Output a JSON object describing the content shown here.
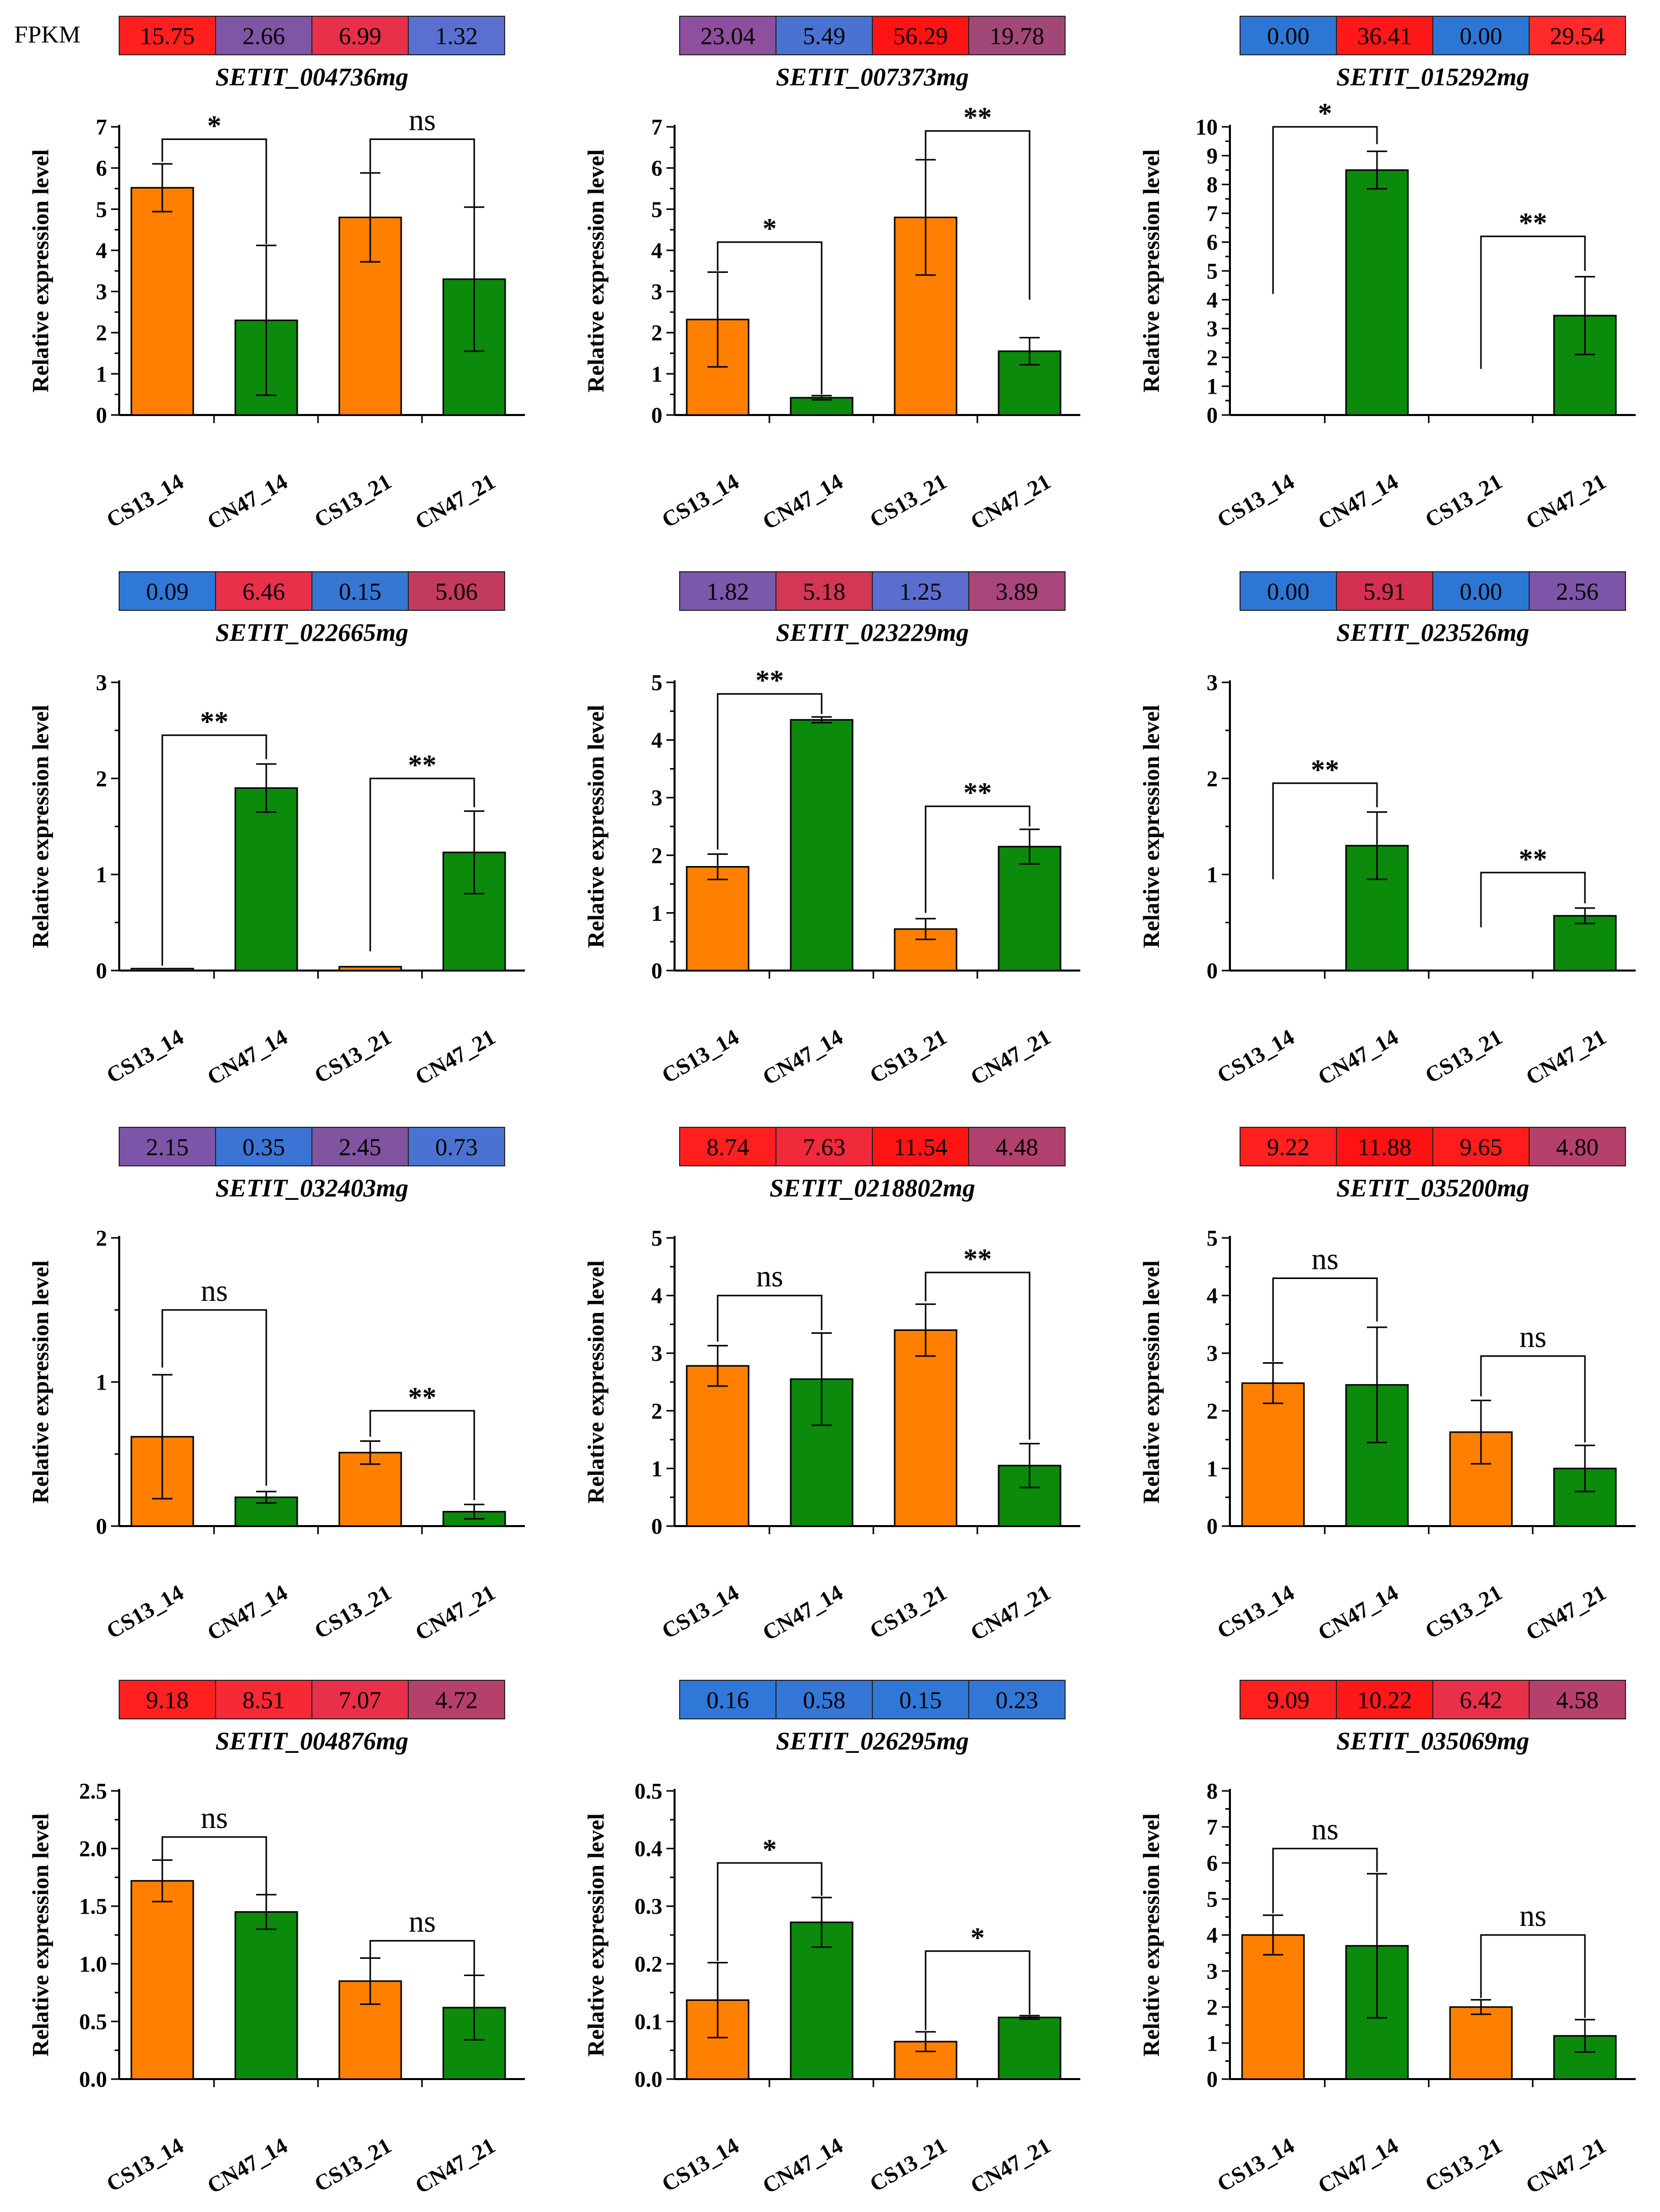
{
  "figure": {
    "fpkm_label": "FPKM",
    "colors": {
      "cs13": "#ff8000",
      "cn47": "#0b8a0b"
    }
  },
  "chart_data": [
    {
      "type": "bar",
      "gene": "SETIT_004736mg",
      "fpkm": [
        "15.75",
        "2.66",
        "6.99",
        "1.32"
      ],
      "fpkm_colors": [
        "#ff1f1f",
        "#7f55a5",
        "#e8304a",
        "#5a6fd0"
      ],
      "categories": [
        "CS13_14",
        "CN47_14",
        "CS13_21",
        "CN47_21"
      ],
      "values": [
        5.52,
        2.3,
        4.8,
        3.3
      ],
      "errors": [
        0.58,
        1.82,
        1.08,
        1.75
      ],
      "ylabel": "Relative expression level",
      "ylim": [
        0,
        7
      ],
      "yticks": [
        0,
        1,
        2,
        3,
        4,
        5,
        6,
        7
      ],
      "tick_labels": [
        "0",
        "1",
        "2",
        "3",
        "4",
        "5",
        "6",
        "7"
      ],
      "sig": [
        {
          "label": "*",
          "y_top": 6.7,
          "left_end": 6.15,
          "right_end": 4.15
        },
        {
          "label": "ns",
          "y_top": 6.7,
          "left_end": 5.9,
          "right_end": 5.05
        }
      ]
    },
    {
      "type": "bar",
      "gene": "SETIT_007373mg",
      "fpkm": [
        "23.04",
        "5.49",
        "56.29",
        "19.78"
      ],
      "fpkm_colors": [
        "#8e4f9e",
        "#4a73d1",
        "#ff1414",
        "#a24878"
      ],
      "categories": [
        "CS13_14",
        "CN47_14",
        "CS13_21",
        "CN47_21"
      ],
      "values": [
        2.32,
        0.42,
        4.8,
        1.55
      ],
      "errors": [
        1.15,
        0.05,
        1.4,
        0.33
      ],
      "ylabel": "Relative expression level",
      "ylim": [
        0,
        7
      ],
      "yticks": [
        0,
        1,
        2,
        3,
        4,
        5,
        6,
        7
      ],
      "tick_labels": [
        "0",
        "1",
        "2",
        "3",
        "4",
        "5",
        "6",
        "7"
      ],
      "sig": [
        {
          "label": "*",
          "y_top": 4.2,
          "left_end": 3.5,
          "right_end": 0.5
        },
        {
          "label": "**",
          "y_top": 6.9,
          "left_end": 6.2,
          "right_end": 2.8
        }
      ]
    },
    {
      "type": "bar",
      "gene": "SETIT_015292mg",
      "fpkm": [
        "0.00",
        "36.41",
        "0.00",
        "29.54"
      ],
      "fpkm_colors": [
        "#2c77d6",
        "#ff1818",
        "#2c77d6",
        "#ff2a2a"
      ],
      "categories": [
        "CS13_14",
        "CN47_14",
        "CS13_21",
        "CN47_21"
      ],
      "values": [
        0,
        8.5,
        0,
        3.45
      ],
      "errors": [
        0,
        0.65,
        0,
        1.35
      ],
      "ylabel": "Relative expression level",
      "ylim": [
        0,
        10
      ],
      "yticks": [
        0,
        1,
        2,
        3,
        4,
        5,
        6,
        7,
        8,
        9,
        10
      ],
      "tick_labels": [
        "0",
        "1",
        "2",
        "3",
        "4",
        "5",
        "6",
        "7",
        "8",
        "9",
        "10"
      ],
      "sig": [
        {
          "label": "*",
          "y_top": 10.0,
          "left_end": 4.2,
          "right_end": 9.4
        },
        {
          "label": "**",
          "y_top": 6.2,
          "left_end": 1.6,
          "right_end": 5.0
        }
      ]
    },
    {
      "type": "bar",
      "gene": "SETIT_022665mg",
      "fpkm": [
        "0.09",
        "6.46",
        "0.15",
        "5.06"
      ],
      "fpkm_colors": [
        "#2f78d8",
        "#e8304a",
        "#3777d4",
        "#c23a5e"
      ],
      "categories": [
        "CS13_14",
        "CN47_14",
        "CS13_21",
        "CN47_21"
      ],
      "values": [
        0.02,
        1.9,
        0.04,
        1.23
      ],
      "errors": [
        0,
        0.25,
        0,
        0.43
      ],
      "ylabel": "Relative expression level",
      "ylim": [
        0,
        3
      ],
      "yticks": [
        0,
        1,
        2,
        3
      ],
      "tick_labels": [
        "0",
        "1",
        "2",
        "3"
      ],
      "sig": [
        {
          "label": "**",
          "y_top": 2.45,
          "left_end": 0.05,
          "right_end": 2.2
        },
        {
          "label": "**",
          "y_top": 2.0,
          "left_end": 0.2,
          "right_end": 1.7
        }
      ]
    },
    {
      "type": "bar",
      "gene": "SETIT_023229mg",
      "fpkm": [
        "1.82",
        "5.18",
        "1.25",
        "3.89"
      ],
      "fpkm_colors": [
        "#7a58aa",
        "#d23754",
        "#5b6ecf",
        "#a8457a"
      ],
      "categories": [
        "CS13_14",
        "CN47_14",
        "CS13_21",
        "CN47_21"
      ],
      "values": [
        1.8,
        4.35,
        0.72,
        2.15
      ],
      "errors": [
        0.22,
        0.05,
        0.18,
        0.3
      ],
      "ylabel": "Relative expression level",
      "ylim": [
        0,
        5
      ],
      "yticks": [
        0,
        1,
        2,
        3,
        4,
        5
      ],
      "tick_labels": [
        "0",
        "1",
        "2",
        "3",
        "4",
        "5"
      ],
      "sig": [
        {
          "label": "**",
          "y_top": 4.8,
          "left_end": 2.1,
          "right_end": 4.45
        },
        {
          "label": "**",
          "y_top": 2.85,
          "left_end": 1.0,
          "right_end": 2.5
        }
      ]
    },
    {
      "type": "bar",
      "gene": "SETIT_023526mg",
      "fpkm": [
        "0.00",
        "5.91",
        "0.00",
        "2.56"
      ],
      "fpkm_colors": [
        "#2c77d6",
        "#d43050",
        "#2c77d6",
        "#7d55a8"
      ],
      "categories": [
        "CS13_14",
        "CN47_14",
        "CS13_21",
        "CN47_21"
      ],
      "values": [
        0,
        1.3,
        0,
        0.57
      ],
      "errors": [
        0,
        0.35,
        0,
        0.08
      ],
      "ylabel": "Relative expression level",
      "ylim": [
        0,
        3
      ],
      "yticks": [
        0,
        1,
        2,
        3
      ],
      "tick_labels": [
        "0",
        "1",
        "2",
        "3"
      ],
      "sig": [
        {
          "label": "**",
          "y_top": 1.95,
          "left_end": 0.95,
          "right_end": 1.7
        },
        {
          "label": "**",
          "y_top": 1.02,
          "left_end": 0.45,
          "right_end": 0.7
        }
      ]
    },
    {
      "type": "bar",
      "gene": "SETIT_032403mg",
      "fpkm": [
        "2.15",
        "0.35",
        "2.45",
        "0.73"
      ],
      "fpkm_colors": [
        "#7d55a8",
        "#3b74d4",
        "#80549f",
        "#4a73d1"
      ],
      "categories": [
        "CS13_14",
        "CN47_14",
        "CS13_21",
        "CN47_21"
      ],
      "values": [
        0.62,
        0.2,
        0.51,
        0.1
      ],
      "errors": [
        0.43,
        0.04,
        0.08,
        0.05
      ],
      "ylabel": "Relative expression level",
      "ylim": [
        0,
        2
      ],
      "yticks": [
        0,
        1,
        2
      ],
      "tick_labels": [
        "0",
        "1",
        "2"
      ],
      "sig": [
        {
          "label": "ns",
          "y_top": 1.5,
          "left_end": 1.1,
          "right_end": 0.28
        },
        {
          "label": "**",
          "y_top": 0.8,
          "left_end": 0.62,
          "right_end": 0.18
        }
      ]
    },
    {
      "type": "bar",
      "gene": "SETIT_0218802mg",
      "fpkm": [
        "8.74",
        "7.63",
        "11.54",
        "4.48"
      ],
      "fpkm_colors": [
        "#ff1f1f",
        "#f02a3a",
        "#ff1414",
        "#b2406e"
      ],
      "categories": [
        "CS13_14",
        "CN47_14",
        "CS13_21",
        "CN47_21"
      ],
      "values": [
        2.78,
        2.55,
        3.4,
        1.05
      ],
      "errors": [
        0.35,
        0.8,
        0.45,
        0.38
      ],
      "ylabel": "Relative expression level",
      "ylim": [
        0,
        5
      ],
      "yticks": [
        0,
        1,
        2,
        3,
        4,
        5
      ],
      "tick_labels": [
        "0",
        "1",
        "2",
        "3",
        "4",
        "5"
      ],
      "sig": [
        {
          "label": "ns",
          "y_top": 4.0,
          "left_end": 3.2,
          "right_end": 3.4
        },
        {
          "label": "**",
          "y_top": 4.4,
          "left_end": 3.9,
          "right_end": 1.5
        }
      ]
    },
    {
      "type": "bar",
      "gene": "SETIT_035200mg",
      "fpkm": [
        "9.22",
        "11.88",
        "9.65",
        "4.80"
      ],
      "fpkm_colors": [
        "#ff2020",
        "#ff1212",
        "#ff1c1c",
        "#b5406c"
      ],
      "categories": [
        "CS13_14",
        "CN47_14",
        "CS13_21",
        "CN47_21"
      ],
      "values": [
        2.48,
        2.45,
        1.63,
        1.0
      ],
      "errors": [
        0.35,
        1.0,
        0.55,
        0.4
      ],
      "ylabel": "Relative expression level",
      "ylim": [
        0,
        5
      ],
      "yticks": [
        0,
        1,
        2,
        3,
        4,
        5
      ],
      "tick_labels": [
        "0",
        "1",
        "2",
        "3",
        "4",
        "5"
      ],
      "sig": [
        {
          "label": "ns",
          "y_top": 4.3,
          "left_end": 2.85,
          "right_end": 3.55
        },
        {
          "label": "ns",
          "y_top": 2.95,
          "left_end": 2.25,
          "right_end": 1.45
        }
      ]
    },
    {
      "type": "bar",
      "gene": "SETIT_004876mg",
      "fpkm": [
        "9.18",
        "8.51",
        "7.07",
        "4.72"
      ],
      "fpkm_colors": [
        "#ff2020",
        "#f52a34",
        "#e8304a",
        "#b5406c"
      ],
      "categories": [
        "CS13_14",
        "CN47_14",
        "CS13_21",
        "CN47_21"
      ],
      "values": [
        1.72,
        1.45,
        0.85,
        0.62
      ],
      "errors": [
        0.18,
        0.15,
        0.2,
        0.28
      ],
      "ylabel": "Relative expression level",
      "ylim": [
        0,
        2.5
      ],
      "yticks": [
        0,
        0.5,
        1.0,
        1.5,
        2.0,
        2.5
      ],
      "tick_labels": [
        "0.0",
        "0.5",
        "1.0",
        "1.5",
        "2.0",
        "2.5"
      ],
      "sig": [
        {
          "label": "ns",
          "y_top": 2.1,
          "left_end": 1.9,
          "right_end": 1.6
        },
        {
          "label": "ns",
          "y_top": 1.2,
          "left_end": 1.05,
          "right_end": 0.9
        }
      ]
    },
    {
      "type": "bar",
      "gene": "SETIT_026295mg",
      "fpkm": [
        "0.16",
        "0.58",
        "0.15",
        "0.23"
      ],
      "fpkm_colors": [
        "#2f78d8",
        "#3576d6",
        "#2f78d8",
        "#3377d6"
      ],
      "categories": [
        "CS13_14",
        "CN47_14",
        "CS13_21",
        "CN47_21"
      ],
      "values": [
        0.137,
        0.272,
        0.065,
        0.107
      ],
      "errors": [
        0.065,
        0.043,
        0.017,
        0.003
      ],
      "ylabel": "Relative expression level",
      "ylim": [
        0,
        0.5
      ],
      "yticks": [
        0,
        0.1,
        0.2,
        0.3,
        0.4,
        0.5
      ],
      "tick_labels": [
        "0.0",
        "0.1",
        "0.2",
        "0.3",
        "0.4",
        "0.5"
      ],
      "sig": [
        {
          "label": "*",
          "y_top": 0.375,
          "left_end": 0.205,
          "right_end": 0.318
        },
        {
          "label": "*",
          "y_top": 0.222,
          "left_end": 0.085,
          "right_end": 0.112
        }
      ]
    },
    {
      "type": "bar",
      "gene": "SETIT_035069mg",
      "fpkm": [
        "9.09",
        "10.22",
        "6.42",
        "4.58"
      ],
      "fpkm_colors": [
        "#ff2020",
        "#ff1818",
        "#e8304a",
        "#b5406c"
      ],
      "categories": [
        "CS13_14",
        "CN47_14",
        "CS13_21",
        "CN47_21"
      ],
      "values": [
        4.0,
        3.7,
        2.0,
        1.2
      ],
      "errors": [
        0.55,
        2.0,
        0.2,
        0.45
      ],
      "ylabel": "Relative expression level",
      "ylim": [
        0,
        8
      ],
      "yticks": [
        0,
        1,
        2,
        3,
        4,
        5,
        6,
        7,
        8
      ],
      "tick_labels": [
        "0",
        "1",
        "2",
        "3",
        "4",
        "5",
        "6",
        "7",
        "8"
      ],
      "sig": [
        {
          "label": "ns",
          "y_top": 6.4,
          "left_end": 4.6,
          "right_end": 5.75
        },
        {
          "label": "ns",
          "y_top": 4.0,
          "left_end": 2.25,
          "right_end": 1.7
        }
      ]
    }
  ]
}
